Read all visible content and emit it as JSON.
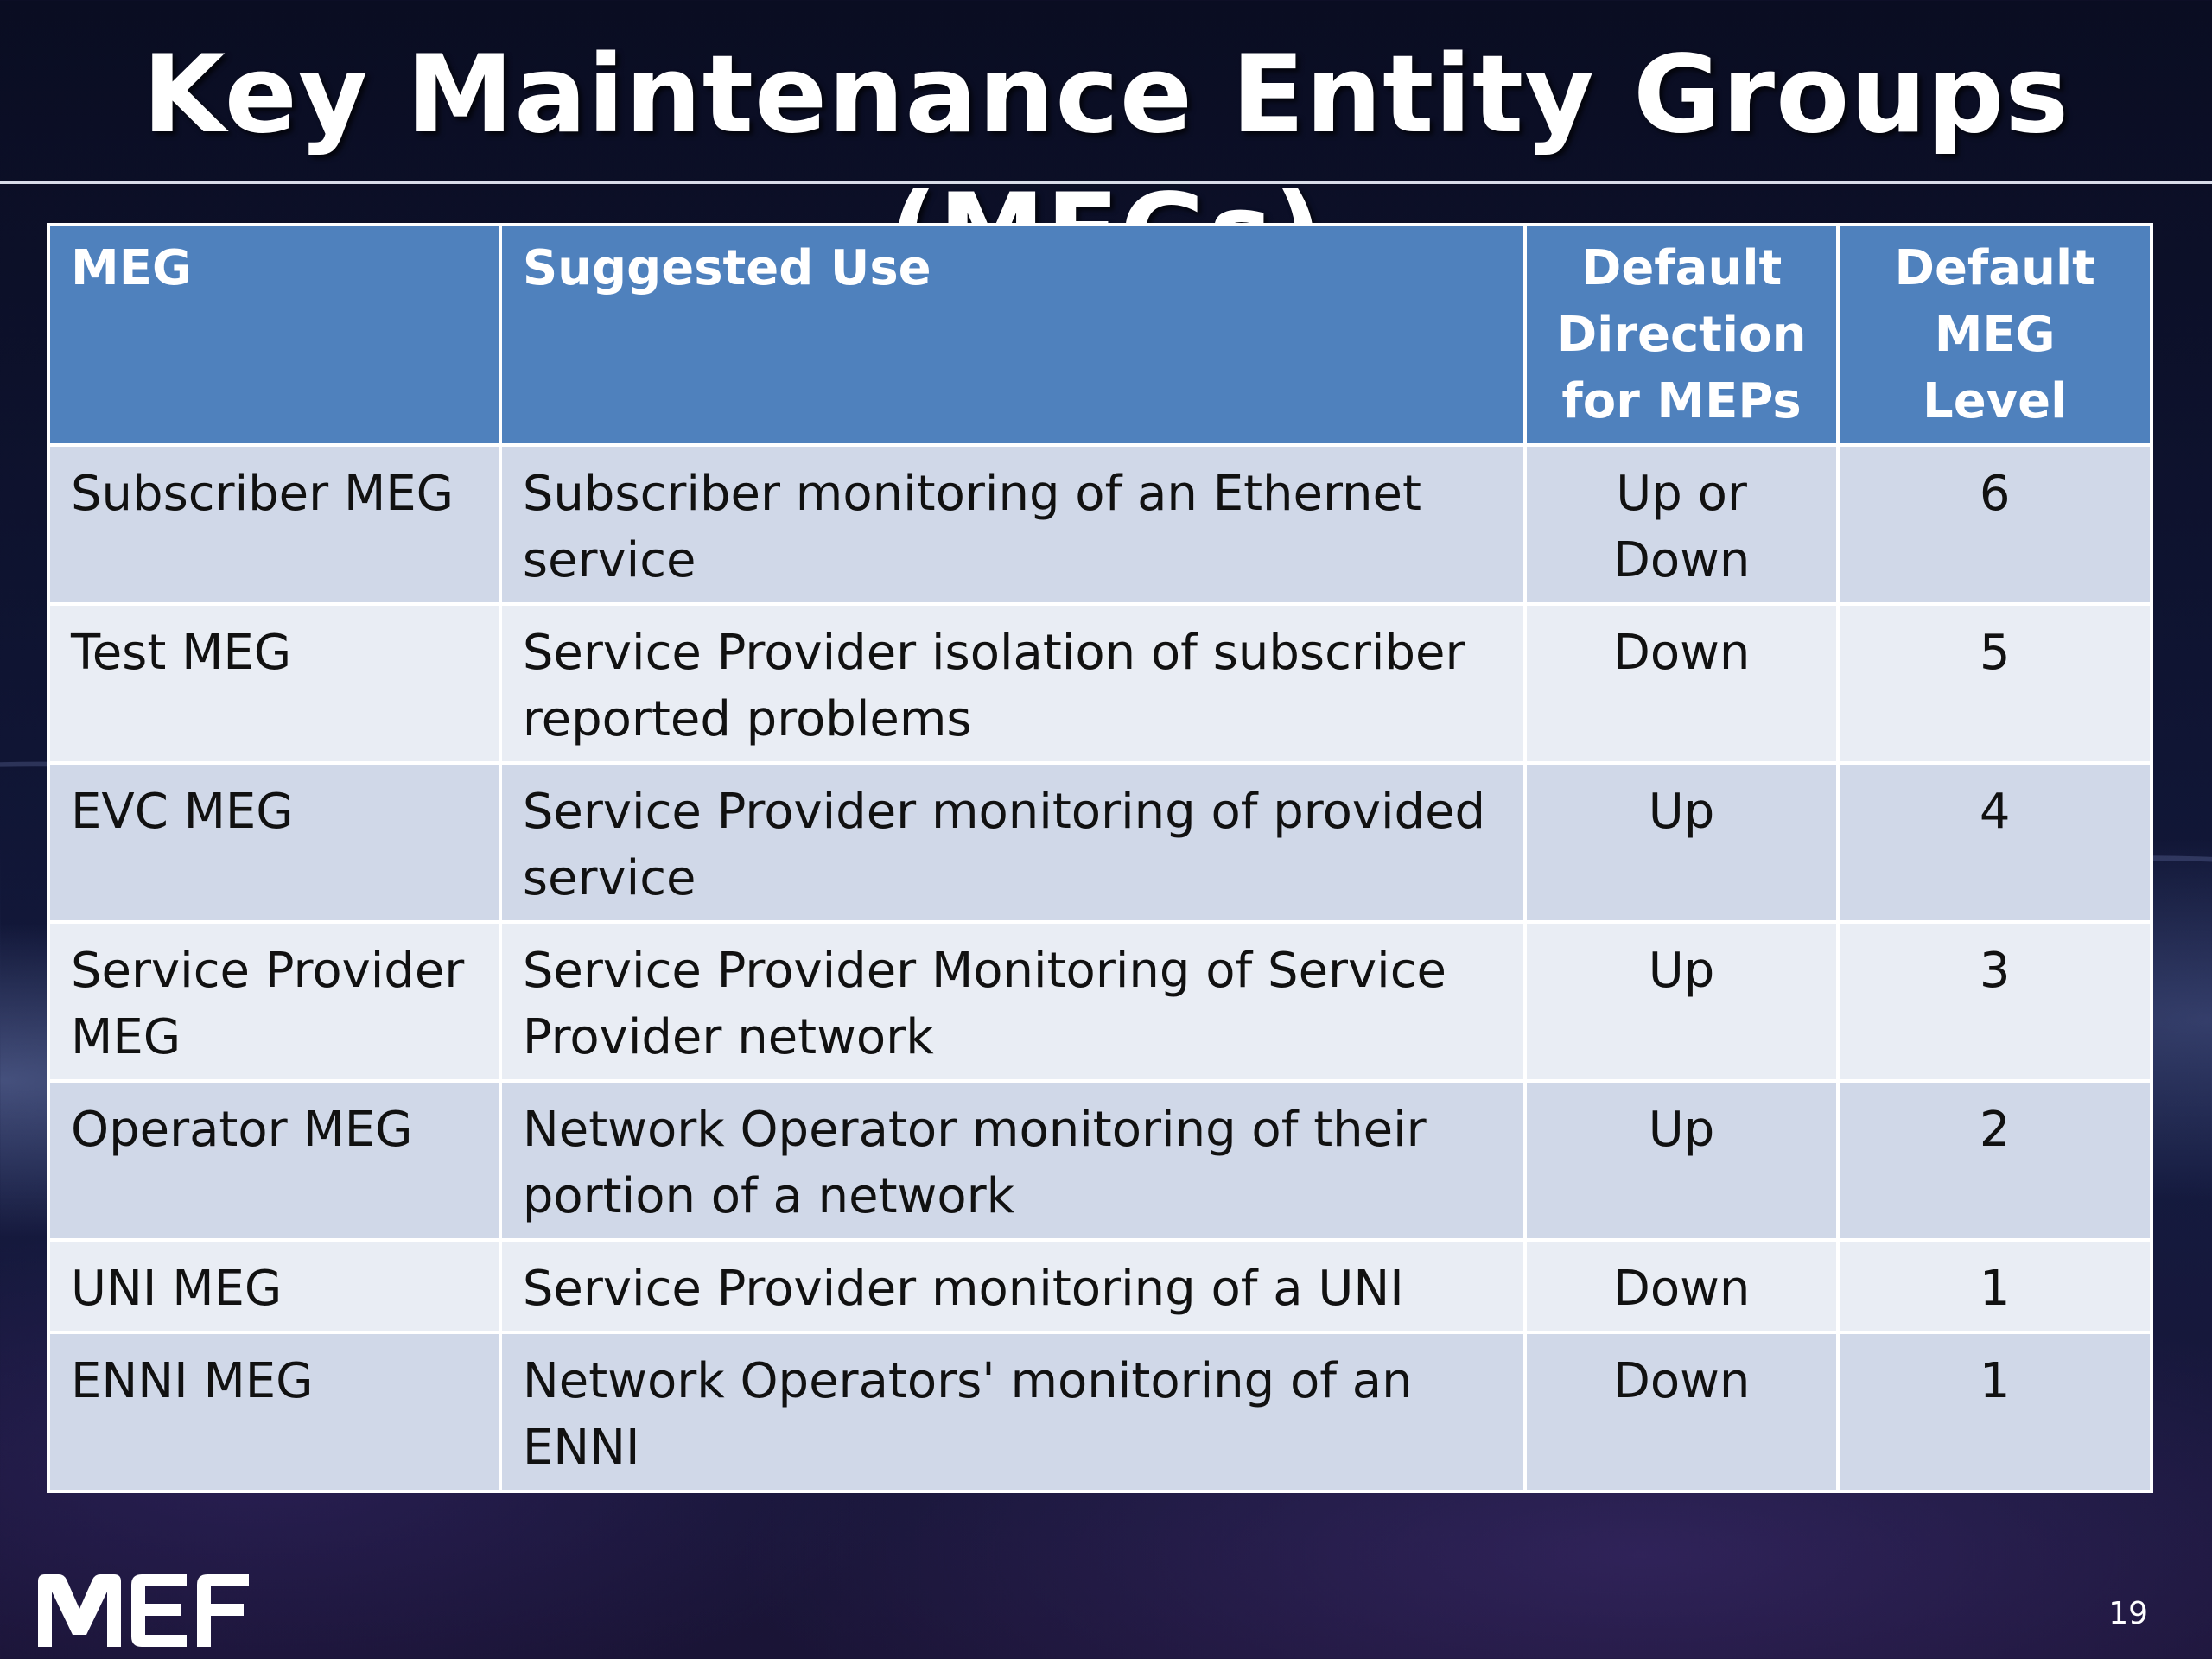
{
  "slide": {
    "title": "Key Maintenance Entity Groups (MEGs)",
    "page_number": "19",
    "logo_text": "MEF"
  },
  "table": {
    "headers": {
      "meg": "MEG",
      "suggested_use": "Suggested Use",
      "direction": "Default Direction for MEPs",
      "level": "Default MEG Level"
    },
    "rows": [
      {
        "meg": "Subscriber MEG",
        "use": "Subscriber monitoring of an Ethernet service",
        "direction": "Up or Down",
        "level": "6"
      },
      {
        "meg": "Test MEG",
        "use": "Service Provider isolation of subscriber reported problems",
        "direction": "Down",
        "level": "5"
      },
      {
        "meg": "EVC MEG",
        "use": "Service Provider monitoring of provided service",
        "direction": "Up",
        "level": "4"
      },
      {
        "meg": "Service Provider MEG",
        "use": "Service Provider Monitoring of Service Provider network",
        "direction": "Up",
        "level": "3"
      },
      {
        "meg": "Operator MEG",
        "use": "Network Operator monitoring of their portion of a network",
        "direction": "Up",
        "level": "2"
      },
      {
        "meg": "UNI MEG",
        "use": "Service Provider monitoring of a UNI",
        "direction": "Down",
        "level": "1"
      },
      {
        "meg": "ENNI MEG",
        "use": "Network Operators' monitoring of an ENNI",
        "direction": "Down",
        "level": "1"
      }
    ]
  },
  "colors": {
    "header_bg": "#4f81bd",
    "row_odd_bg": "#d0d8e8",
    "row_even_bg": "#e9edf4",
    "background": "#0f1432"
  }
}
